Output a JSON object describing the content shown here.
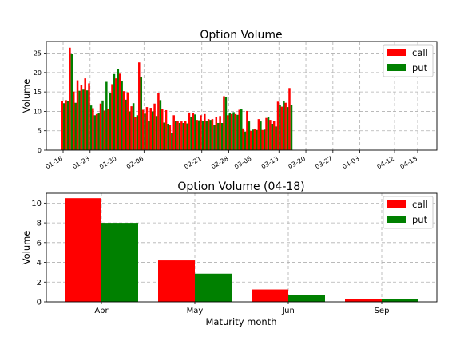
{
  "chart_data": [
    {
      "type": "bar",
      "title": "Option Volume",
      "xlabel": "",
      "ylabel": "Volume",
      "ylim": [
        0,
        28
      ],
      "yticks": [
        0,
        5,
        10,
        15,
        20,
        25
      ],
      "grid": true,
      "legend_position": "top-right",
      "categories": [
        "01-16",
        "01-17",
        "01-18",
        "01-19",
        "01-20",
        "01-21",
        "01-22",
        "01-23",
        "01-24",
        "01-25",
        "01-26",
        "01-27",
        "01-28",
        "01-29",
        "01-30",
        "01-31",
        "02-01",
        "02-02",
        "02-03",
        "02-04",
        "02-05",
        "02-06",
        "02-07",
        "02-08",
        "02-09",
        "02-10",
        "02-11",
        "02-12",
        "02-13",
        "02-14",
        "02-15",
        "02-16",
        "02-17",
        "02-18",
        "02-19",
        "02-20",
        "02-21",
        "02-22",
        "02-23",
        "02-24",
        "02-25",
        "02-26",
        "02-27",
        "02-28",
        "03-01",
        "03-02",
        "03-03",
        "03-04",
        "03-05",
        "03-06",
        "03-07",
        "03-08",
        "03-09",
        "03-10",
        "03-11",
        "03-12",
        "03-13",
        "03-14",
        "03-15",
        "03-16",
        "03-17",
        "03-18",
        "03-19",
        "03-20",
        "03-21",
        "03-22",
        "03-23",
        "03-24",
        "03-25",
        "03-26",
        "03-27",
        "03-28",
        "03-29",
        "03-30",
        "03-31",
        "04-01",
        "04-02",
        "04-03",
        "04-04",
        "04-05",
        "04-06",
        "04-07",
        "04-08",
        "04-09",
        "04-10",
        "04-11",
        "04-12",
        "04-13",
        "04-14",
        "04-15",
        "04-16",
        "04-17",
        "04-18"
      ],
      "date_values": [
        [
          "01-16",
          12.6,
          12.1
        ],
        [
          "01-17",
          12.9,
          12.6
        ],
        [
          "01-18",
          26.4,
          24.8
        ],
        [
          "01-19",
          15.1,
          12.2
        ],
        [
          "01-20",
          18.0,
          15.3
        ],
        [
          "01-21",
          16.7,
          15.6
        ],
        [
          "01-22",
          18.5,
          15.4
        ],
        [
          "01-23",
          17.2,
          11.5
        ],
        [
          "01-24",
          10.8,
          9.0
        ],
        [
          "01-25",
          9.3,
          9.6
        ],
        [
          "01-26",
          12.0,
          12.8
        ],
        [
          "01-27",
          10.2,
          17.6
        ],
        [
          "01-28",
          10.5,
          14.8
        ],
        [
          "01-29",
          17.0,
          19.6
        ],
        [
          "01-30",
          18.5,
          21.0
        ],
        [
          "01-31",
          19.7,
          17.7
        ],
        [
          "02-01",
          15.2,
          13.0
        ],
        [
          "02-02",
          14.9,
          10.0
        ],
        [
          "02-03",
          11.3,
          12.1
        ],
        [
          "02-04",
          8.5,
          9.0
        ],
        [
          "02-05",
          22.6,
          18.8
        ],
        [
          "02-06",
          10.4,
          9.4
        ],
        [
          "02-07",
          11.1,
          7.6
        ],
        [
          "02-08",
          10.9,
          10.0
        ],
        [
          "02-09",
          12.0,
          8.8
        ],
        [
          "02-10",
          14.7,
          12.9
        ],
        [
          "02-11",
          10.5,
          7.1
        ],
        [
          "02-12",
          10.3,
          6.8
        ],
        [
          "02-13",
          6.5,
          4.5
        ],
        [
          "02-14",
          9.0,
          7.5
        ],
        [
          "02-15",
          7.5,
          7.0
        ],
        [
          "02-16",
          7.4,
          7.0
        ],
        [
          "02-17",
          7.6,
          6.9
        ],
        [
          "02-18",
          9.7,
          8.5
        ],
        [
          "02-19",
          9.6,
          9.2
        ],
        [
          "02-20",
          7.8,
          7.7
        ],
        [
          "02-21",
          9.0,
          7.5
        ],
        [
          "02-22",
          9.3,
          7.5
        ],
        [
          "02-23",
          8.0,
          7.8
        ],
        [
          "02-24",
          8.0,
          6.5
        ],
        [
          "02-25",
          8.5,
          7.0
        ],
        [
          "02-26",
          8.8,
          7.0
        ],
        [
          "02-27",
          13.9,
          13.7
        ],
        [
          "02-28",
          9.0,
          9.5
        ],
        [
          "03-01",
          9.3,
          9.8
        ],
        [
          "03-02",
          9.3,
          9.1
        ],
        [
          "03-03",
          10.4,
          10.5
        ],
        [
          "03-04",
          5.6,
          4.8
        ],
        [
          "03-05",
          10.1,
          7.4
        ],
        [
          "03-06",
          5.0,
          5.3
        ],
        [
          "03-07",
          5.5,
          5.2
        ],
        [
          "03-08",
          8.0,
          7.4
        ],
        [
          "03-09",
          5.2,
          5.3
        ],
        [
          "03-10",
          8.3,
          8.6
        ],
        [
          "03-11",
          7.8,
          6.8
        ],
        [
          "03-12",
          7.6,
          6.1
        ],
        [
          "03-13",
          12.5,
          11.7
        ],
        [
          "03-14",
          11.2,
          12.7
        ],
        [
          "03-15",
          12.2,
          11.1
        ],
        [
          "03-16",
          16.0,
          11.6
        ]
      ],
      "series": [
        {
          "name": "call",
          "color": "#ff0000"
        },
        {
          "name": "put",
          "color": "#008000"
        }
      ]
    },
    {
      "type": "bar",
      "title": "Option Volume (04-18)",
      "xlabel": "Maturity month",
      "ylabel": "Volume",
      "ylim": [
        0,
        11
      ],
      "yticks": [
        0,
        2,
        4,
        6,
        8,
        10
      ],
      "grid": true,
      "legend_position": "top-right",
      "categories": [
        "Apr",
        "May",
        "Jun",
        "Sep"
      ],
      "series": [
        {
          "name": "call",
          "color": "#ff0000",
          "values": [
            10.5,
            4.2,
            1.25,
            0.25
          ]
        },
        {
          "name": "put",
          "color": "#008000",
          "values": [
            8.0,
            2.85,
            0.65,
            0.3
          ]
        }
      ]
    }
  ],
  "top_tick_labels": [
    "01-16",
    "01-23",
    "01-30",
    "02-06",
    "02-21",
    "02-28",
    "03-06",
    "03-13",
    "03-20",
    "03-27",
    "04-03",
    "04-12",
    "04-18"
  ]
}
